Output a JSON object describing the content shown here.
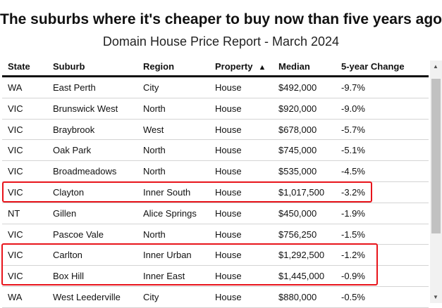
{
  "title": "The suburbs where it's cheaper to buy now than five years ago",
  "subtitle": "Domain House Price Report - March 2024",
  "columns": {
    "state": "State",
    "suburb": "Suburb",
    "region": "Region",
    "property": "Property",
    "sort_indicator": "▲",
    "median": "Median",
    "change": "5-year Change"
  },
  "rows": [
    {
      "state": "WA",
      "suburb": "East Perth",
      "region": "City",
      "property": "House",
      "median": "$492,000",
      "change": "-9.7%"
    },
    {
      "state": "VIC",
      "suburb": "Brunswick West",
      "region": "North",
      "property": "House",
      "median": "$920,000",
      "change": "-9.0%"
    },
    {
      "state": "VIC",
      "suburb": "Braybrook",
      "region": "West",
      "property": "House",
      "median": "$678,000",
      "change": "-5.7%"
    },
    {
      "state": "VIC",
      "suburb": "Oak Park",
      "region": "North",
      "property": "House",
      "median": "$745,000",
      "change": "-5.1%"
    },
    {
      "state": "VIC",
      "suburb": "Broadmeadows",
      "region": "North",
      "property": "House",
      "median": "$535,000",
      "change": "-4.5%"
    },
    {
      "state": "VIC",
      "suburb": "Clayton",
      "region": "Inner South",
      "property": "House",
      "median": "$1,017,500",
      "change": "-3.2%"
    },
    {
      "state": "NT",
      "suburb": "Gillen",
      "region": "Alice Springs",
      "property": "House",
      "median": "$450,000",
      "change": "-1.9%"
    },
    {
      "state": "VIC",
      "suburb": "Pascoe Vale",
      "region": "North",
      "property": "House",
      "median": "$756,250",
      "change": "-1.5%"
    },
    {
      "state": "VIC",
      "suburb": "Carlton",
      "region": "Inner Urban",
      "property": "House",
      "median": "$1,292,500",
      "change": "-1.2%"
    },
    {
      "state": "VIC",
      "suburb": "Box Hill",
      "region": "Inner East",
      "property": "House",
      "median": "$1,445,000",
      "change": "-0.9%"
    },
    {
      "state": "WA",
      "suburb": "West Leederville",
      "region": "City",
      "property": "House",
      "median": "$880,000",
      "change": "-0.5%"
    }
  ],
  "highlight_color": "#e8141b"
}
